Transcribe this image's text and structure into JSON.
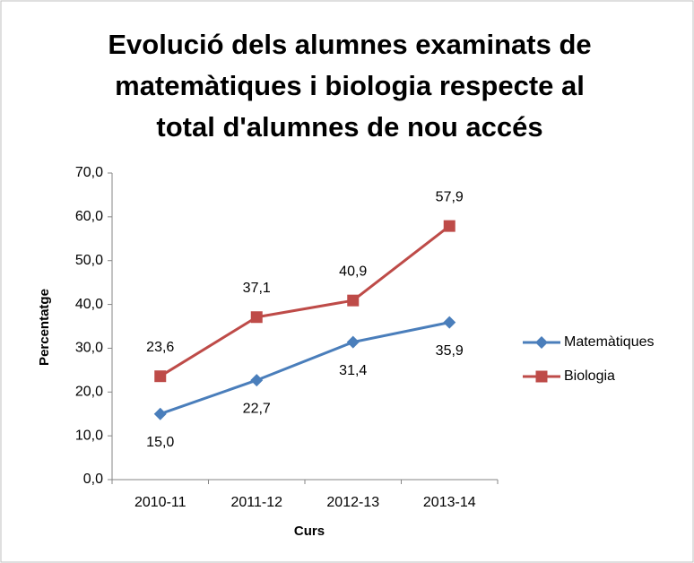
{
  "chart_data": {
    "type": "line",
    "title": [
      "Evolució dels alumnes examinats de",
      "matemàtiques i biologia respecte al",
      "total d'alumnes de nou accés"
    ],
    "x_label": "Curs",
    "y_label": "Percentatge",
    "categories": [
      "2010-11",
      "2011-12",
      "2012-13",
      "2013-14"
    ],
    "series": [
      {
        "name": "Matemàtiques",
        "color": "#4a7ebb",
        "marker": "diamond",
        "label_position": "below",
        "values": [
          15.0,
          22.7,
          31.4,
          35.9
        ],
        "value_labels": [
          "15,0",
          "22,7",
          "31,4",
          "35,9"
        ]
      },
      {
        "name": "Biologia",
        "color": "#be4b48",
        "marker": "square",
        "label_position": "above",
        "values": [
          23.6,
          37.1,
          40.9,
          57.9
        ],
        "value_labels": [
          "23,6",
          "37,1",
          "40,9",
          "57,9"
        ]
      }
    ],
    "ylim": [
      0,
      70
    ],
    "yticks": [
      {
        "value": 0,
        "label": "0,0"
      },
      {
        "value": 10,
        "label": "10,0"
      },
      {
        "value": 20,
        "label": "20,0"
      },
      {
        "value": 30,
        "label": "30,0"
      },
      {
        "value": 40,
        "label": "40,0"
      },
      {
        "value": 50,
        "label": "50,0"
      },
      {
        "value": 60,
        "label": "60,0"
      },
      {
        "value": 70,
        "label": "70,0"
      }
    ],
    "legend": "right"
  }
}
